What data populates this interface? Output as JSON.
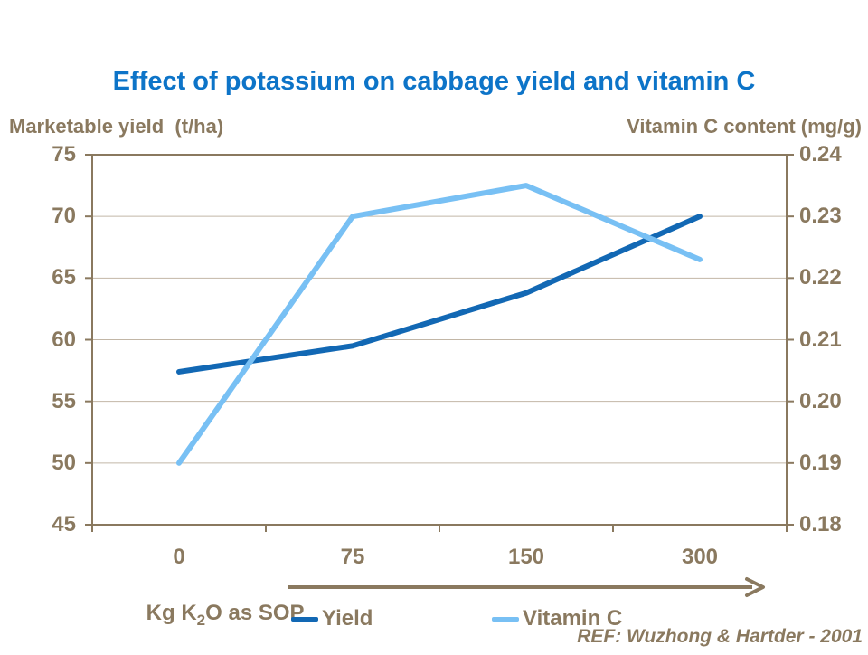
{
  "slide": {
    "title": "Effect of potassium on cabbage yield and vitamin C",
    "reference": "REF: Wuzhong & Hartder - 2001"
  },
  "colors": {
    "title": "#0D74C8",
    "axis_text": "#8A795F",
    "axis_line": "#8A795F",
    "gridline": "#C2B6A6",
    "background": "#FFFFFF",
    "yield_line": "#1268B4",
    "vitamin_c_line": "#78C0F4"
  },
  "chart_data": {
    "type": "line",
    "title": "Effect of potassium on cabbage yield and vitamin C",
    "categories": [
      "0",
      "75",
      "150",
      "300"
    ],
    "x_axis": {
      "label_pre": "Kg K",
      "label_sub": "2",
      "label_post": "O as SOP",
      "label_plain": "Kg K2O as SOP",
      "arrow": true
    },
    "left_axis": {
      "title": "Marketable yield  (t/ha)",
      "min": 45,
      "max": 75,
      "tick_step": 5,
      "tick_labels": [
        "75",
        "70",
        "65",
        "60",
        "55",
        "50",
        "45"
      ]
    },
    "right_axis": {
      "title": "Vitamin C content (mg/g)",
      "min": 0.18,
      "max": 0.24,
      "tick_step": 0.01,
      "tick_labels": [
        "0.24",
        "0.23",
        "0.22",
        "0.21",
        "0.20",
        "0.19",
        "0.18"
      ]
    },
    "series": [
      {
        "name": "Yield",
        "axis": "left",
        "color": "#1268B4",
        "values": [
          57.4,
          59.5,
          63.8,
          70.0
        ]
      },
      {
        "name": "Vitamin C",
        "axis": "right",
        "color": "#78C0F4",
        "values": [
          0.19,
          0.23,
          0.235,
          0.223
        ]
      }
    ],
    "grid": "horizontal",
    "legend_position": "bottom",
    "reference": "REF: Wuzhong & Hartder - 2001"
  }
}
